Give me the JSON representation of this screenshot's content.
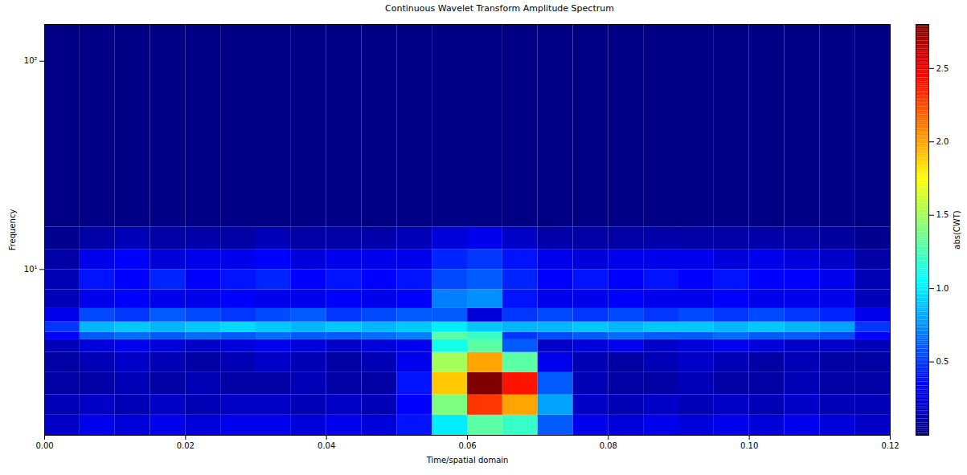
{
  "chart_data": {
    "type": "heatmap",
    "title": "Continuous Wavelet Transform Amplitude Spectrum",
    "x_label": "Time/spatial domain",
    "y_label": "Frequency",
    "log": "y",
    "xlim": [
      0,
      0.12
    ],
    "xticks": [
      {
        "value": 0,
        "label": "0.00"
      },
      {
        "value": 0.02,
        "label": "0.02"
      },
      {
        "value": 0.04,
        "label": "0.04"
      },
      {
        "value": 0.06,
        "label": "0.06"
      },
      {
        "value": 0.08,
        "label": "0.08"
      },
      {
        "value": 0.1,
        "label": "0.10"
      },
      {
        "value": 0.12,
        "label": "0.12"
      }
    ],
    "ylim": [
      1.6,
      150
    ],
    "yticks": [
      {
        "value": 10,
        "label": "10¹"
      },
      {
        "value": 100,
        "label": "10²"
      }
    ],
    "x_edges": [
      0,
      0.005,
      0.01,
      0.015,
      0.02,
      0.025,
      0.03,
      0.035,
      0.04,
      0.045,
      0.05,
      0.055,
      0.06,
      0.065,
      0.07,
      0.075,
      0.08,
      0.085,
      0.09,
      0.095,
      0.1,
      0.105,
      0.11,
      0.115,
      0.12
    ],
    "y_edges": [
      1.6,
      2.0,
      2.5,
      3.2,
      4.0,
      4.6,
      5.0,
      5.6,
      6.5,
      8,
      10,
      12.5,
      16,
      150
    ],
    "cells": [
      [
        0.2,
        0.3,
        0.25,
        0.3,
        0.25,
        0.3,
        0.3,
        0.25,
        0.3,
        0.25,
        0.4,
        1.0,
        1.3,
        1.2,
        0.6,
        0.3,
        0.25,
        0.3,
        0.25,
        0.3,
        0.25,
        0.3,
        0.25,
        0.2
      ],
      [
        0.15,
        0.2,
        0.15,
        0.2,
        0.15,
        0.2,
        0.2,
        0.15,
        0.2,
        0.15,
        0.35,
        1.4,
        2.3,
        2.0,
        0.8,
        0.2,
        0.15,
        0.2,
        0.15,
        0.2,
        0.15,
        0.2,
        0.15,
        0.15
      ],
      [
        0.1,
        0.1,
        0.15,
        0.1,
        0.15,
        0.1,
        0.1,
        0.15,
        0.1,
        0.1,
        0.4,
        1.9,
        2.8,
        2.4,
        0.6,
        0.15,
        0.1,
        0.1,
        0.15,
        0.1,
        0.1,
        0.15,
        0.1,
        0.1
      ],
      [
        0.1,
        0.15,
        0.2,
        0.15,
        0.1,
        0.15,
        0.2,
        0.15,
        0.1,
        0.15,
        0.3,
        1.5,
        2.0,
        1.3,
        0.3,
        0.15,
        0.1,
        0.15,
        0.2,
        0.15,
        0.1,
        0.15,
        0.1,
        0.1
      ],
      [
        0.15,
        0.25,
        0.3,
        0.25,
        0.2,
        0.25,
        0.3,
        0.25,
        0.2,
        0.25,
        0.3,
        1.1,
        1.3,
        0.6,
        0.2,
        0.25,
        0.3,
        0.2,
        0.25,
        0.3,
        0.25,
        0.2,
        0.2,
        0.15
      ],
      [
        0.35,
        0.6,
        0.65,
        0.6,
        0.65,
        0.6,
        0.65,
        0.6,
        0.6,
        0.65,
        0.7,
        1.3,
        1.2,
        0.5,
        0.55,
        0.6,
        0.65,
        0.6,
        0.6,
        0.65,
        0.6,
        0.6,
        0.55,
        0.35
      ],
      [
        0.5,
        0.85,
        0.9,
        0.85,
        0.9,
        0.95,
        0.9,
        0.85,
        0.9,
        0.85,
        0.9,
        1.0,
        0.9,
        0.85,
        0.85,
        0.9,
        0.85,
        0.9,
        0.9,
        0.85,
        0.9,
        0.85,
        0.8,
        0.5
      ],
      [
        0.3,
        0.55,
        0.5,
        0.6,
        0.55,
        0.5,
        0.55,
        0.6,
        0.5,
        0.55,
        0.6,
        0.6,
        0.25,
        0.5,
        0.55,
        0.5,
        0.55,
        0.5,
        0.55,
        0.5,
        0.55,
        0.5,
        0.45,
        0.3
      ],
      [
        0.15,
        0.3,
        0.35,
        0.3,
        0.3,
        0.35,
        0.3,
        0.3,
        0.35,
        0.3,
        0.35,
        0.7,
        0.75,
        0.4,
        0.3,
        0.3,
        0.35,
        0.3,
        0.3,
        0.35,
        0.3,
        0.3,
        0.3,
        0.15
      ],
      [
        0.15,
        0.4,
        0.35,
        0.45,
        0.35,
        0.4,
        0.45,
        0.35,
        0.4,
        0.35,
        0.4,
        0.55,
        0.6,
        0.45,
        0.35,
        0.4,
        0.35,
        0.4,
        0.35,
        0.4,
        0.35,
        0.35,
        0.3,
        0.15
      ],
      [
        0.1,
        0.3,
        0.35,
        0.25,
        0.3,
        0.3,
        0.35,
        0.25,
        0.3,
        0.3,
        0.3,
        0.45,
        0.5,
        0.4,
        0.3,
        0.25,
        0.3,
        0.3,
        0.3,
        0.25,
        0.3,
        0.25,
        0.2,
        0.1
      ],
      [
        0.05,
        0.1,
        0.15,
        0.1,
        0.12,
        0.1,
        0.15,
        0.1,
        0.1,
        0.12,
        0.15,
        0.25,
        0.3,
        0.2,
        0.12,
        0.1,
        0.1,
        0.12,
        0.1,
        0.1,
        0.12,
        0.1,
        0.08,
        0.05
      ],
      [
        0.02,
        0.02,
        0.02,
        0.02,
        0.02,
        0.02,
        0.02,
        0.02,
        0.02,
        0.02,
        0.02,
        0.02,
        0.02,
        0.02,
        0.02,
        0.02,
        0.02,
        0.02,
        0.02,
        0.02,
        0.02,
        0.02,
        0.02,
        0.02
      ]
    ],
    "colorbar": {
      "label": "abs(CWT)",
      "range": [
        0,
        2.8
      ],
      "ticks": [
        0.5,
        {
          "value": 1,
          "label": "1.0"
        },
        1.5,
        {
          "value": 2,
          "label": "2.0"
        },
        2.5
      ]
    }
  }
}
